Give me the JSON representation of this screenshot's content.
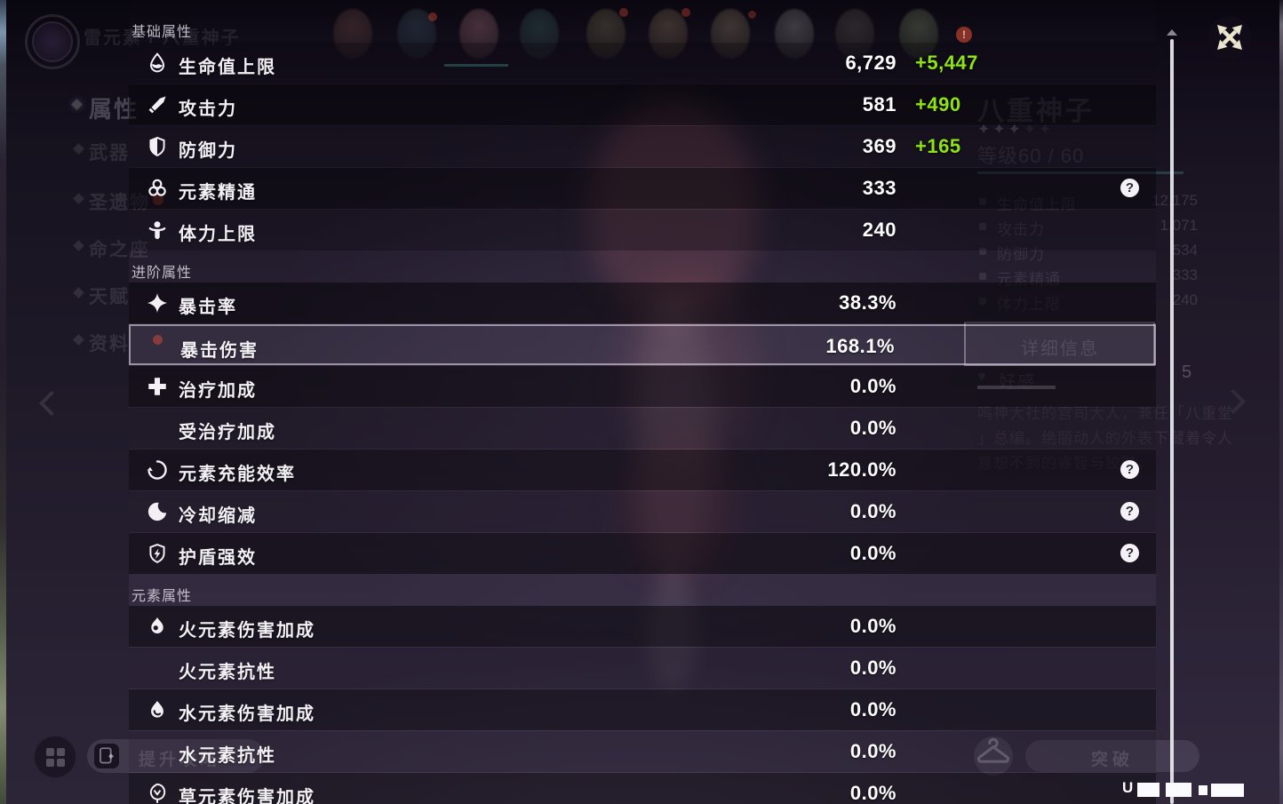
{
  "breadcrumb": {
    "text": "雷元素 / 八重神子"
  },
  "nav": {
    "items": [
      {
        "label": "属性"
      },
      {
        "label": "武器"
      },
      {
        "label": "圣遗物"
      },
      {
        "label": "命之座"
      },
      {
        "label": "天赋"
      },
      {
        "label": "资料"
      }
    ]
  },
  "roster_badge": "!",
  "panel": {
    "help_glyph": "?",
    "sections": [
      {
        "title": "基础属性",
        "rows": [
          {
            "icon": "hp-icon",
            "label": "生命值上限",
            "value": "6,729",
            "bonus": "+5,447"
          },
          {
            "icon": "attack-icon",
            "label": "攻击力",
            "value": "581",
            "bonus": "+490"
          },
          {
            "icon": "defense-icon",
            "label": "防御力",
            "value": "369",
            "bonus": "+165"
          },
          {
            "icon": "mastery-icon",
            "label": "元素精通",
            "value": "333"
          },
          {
            "icon": "stamina-icon",
            "label": "体力上限",
            "value": "240"
          }
        ]
      },
      {
        "title": "进阶属性",
        "rows": [
          {
            "icon": "crit-rate-icon",
            "label": "暴击率",
            "value": "38.3%"
          },
          {
            "icon": "",
            "label": "暴击伤害",
            "value": "168.1%"
          },
          {
            "icon": "healing-icon",
            "label": "治疗加成",
            "value": "0.0%"
          },
          {
            "icon": "",
            "label": "受治疗加成",
            "value": "0.0%"
          },
          {
            "icon": "recharge-icon",
            "label": "元素充能效率",
            "value": "120.0%"
          },
          {
            "icon": "cooldown-icon",
            "label": "冷却缩减",
            "value": "0.0%"
          },
          {
            "icon": "shield-str-icon",
            "label": "护盾强效",
            "value": "0.0%"
          }
        ]
      },
      {
        "title": "元素属性",
        "rows": [
          {
            "icon": "pyro-icon",
            "label": "火元素伤害加成",
            "value": "0.0%"
          },
          {
            "icon": "",
            "label": "火元素抗性",
            "value": "0.0%"
          },
          {
            "icon": "hydro-icon",
            "label": "水元素伤害加成",
            "value": "0.0%"
          },
          {
            "icon": "",
            "label": "水元素抗性",
            "value": "0.0%"
          },
          {
            "icon": "dendro-icon",
            "label": "草元素伤害加成",
            "value": "0.0%"
          }
        ]
      }
    ]
  },
  "card": {
    "name": "八重神子",
    "stars": 5,
    "star_glyph": "✦",
    "level_text": "等级60 / 60",
    "attributes": [
      {
        "label": "生命值上限",
        "value": "12,175"
      },
      {
        "label": "攻击力",
        "value": "1,071"
      },
      {
        "label": "防御力",
        "value": "534"
      },
      {
        "label": "元素精通",
        "value": "333"
      },
      {
        "label": "体力上限",
        "value": "240"
      }
    ],
    "detail_tab": "详细信息",
    "heart_glyph": "♥",
    "friendship_label": "好感",
    "friendship_level": "5",
    "description_lines": [
      "鸣神大社的宫司大人，兼任「八重堂",
      "」总编。绝丽动人的外表下藏着令人",
      "意想不到的睿智与狡黠。"
    ]
  },
  "footer": {
    "guide_button": "提升攻略",
    "ascend_button": "突破",
    "uid_prefix": "U"
  },
  "colors": {
    "bonus_green": "#8de313",
    "divider_teal": "#2e7d80",
    "select_border": "#d6d1dd"
  }
}
